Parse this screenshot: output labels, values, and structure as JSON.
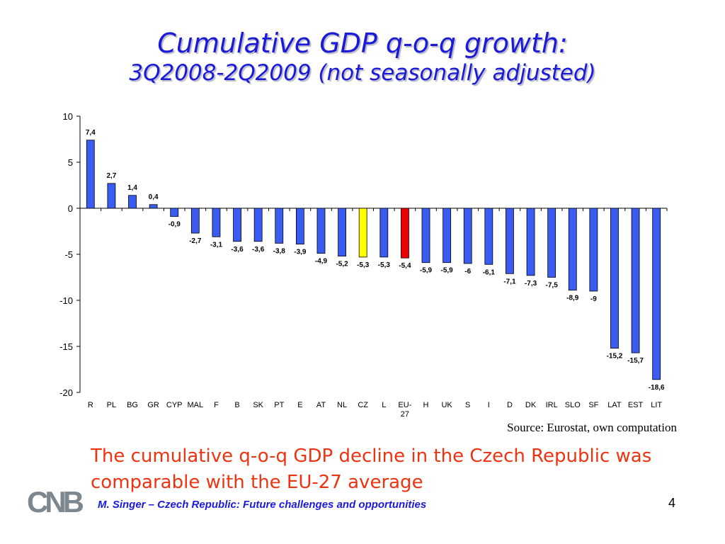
{
  "slide": {
    "title_line1": "Cumulative GDP q-o-q growth:",
    "title_line2": "3Q2008-2Q2009 (not seasonally adjusted)",
    "source": "Source: Eurostat, own computation",
    "conclusion": "The cumulative q-o-q GDP decline in the Czech Republic was comparable with the EU-27 average",
    "footer": "M. Singer – Czech Republic: Future challenges and opportunities",
    "page_number": "4",
    "logo_text": "CNB"
  },
  "colors": {
    "title": "#1a1ad8",
    "bar_default": "#3a5cf0",
    "bar_cz": "#ffff00",
    "bar_eu27": "#ee0000",
    "conclusion": "#ee3311",
    "logo": "#7d8790"
  },
  "chart_data": {
    "type": "bar",
    "categories": [
      "R",
      "PL",
      "BG",
      "GR",
      "CYP",
      "MAL",
      "F",
      "B",
      "SK",
      "PT",
      "E",
      "AT",
      "NL",
      "CZ",
      "L",
      "EU-27",
      "H",
      "UK",
      "S",
      "I",
      "D",
      "DK",
      "IRL",
      "SLO",
      "SF",
      "LAT",
      "EST",
      "LIT"
    ],
    "values": [
      7.4,
      2.7,
      1.4,
      0.4,
      -0.9,
      -2.7,
      -3.1,
      -3.6,
      -3.6,
      -3.8,
      -3.9,
      -4.9,
      -5.2,
      -5.3,
      -5.3,
      -5.4,
      -5.9,
      -5.9,
      -6,
      -6.1,
      -7.1,
      -7.3,
      -7.5,
      -8.9,
      -9,
      -15.2,
      -15.7,
      -18.6
    ],
    "data_labels": [
      "7,4",
      "2,7",
      "1,4",
      "0,4",
      "-0,9",
      "-2,7",
      "-3,1",
      "-3,6",
      "-3,6",
      "-3,8",
      "-3,9",
      "-4,9",
      "-5,2",
      "-5,3",
      "-5,3",
      "-5,4",
      "-5,9",
      "-5,9",
      "-6",
      "-6,1",
      "-7,1",
      "-7,3",
      "-7,5",
      "-8,9",
      "-9",
      "-15,2",
      "-15,7",
      "-18,6"
    ],
    "highlight": {
      "CZ": "#ffff00",
      "EU-27": "#ee0000"
    },
    "ylim": [
      -20,
      10
    ],
    "yticks": [
      10,
      5,
      0,
      -5,
      -10,
      -15,
      -20
    ],
    "xlabel": "",
    "ylabel": "",
    "grid": false,
    "legend": "none"
  }
}
